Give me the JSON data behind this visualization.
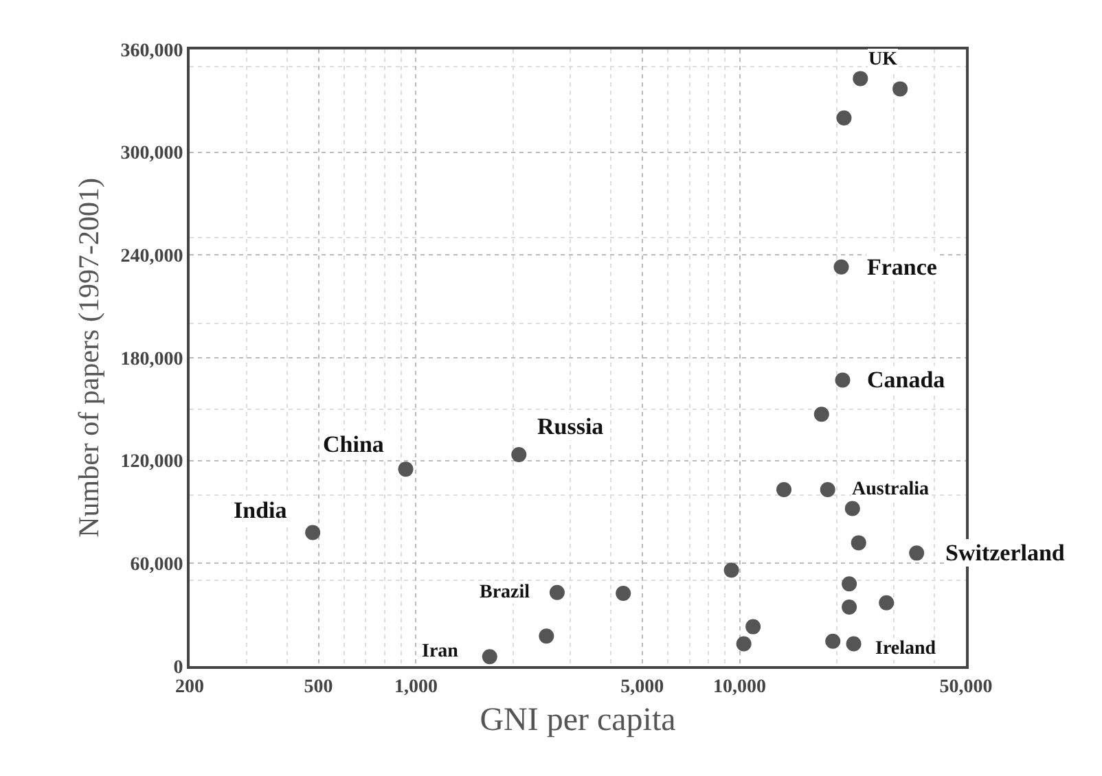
{
  "chart_data": {
    "type": "scatter",
    "xlabel": "GNI per capita",
    "ylabel": "Number of papers (1997-2001)",
    "log": "x",
    "grid": true,
    "marker": "circle",
    "xlim": [
      200,
      50000
    ],
    "xticks": [
      200,
      500,
      {
        "value": 1000,
        "label": "1,000"
      },
      {
        "value": 5000,
        "label": "5,000"
      },
      {
        "value": 10000,
        "label": "10,000"
      },
      {
        "value": 50000,
        "label": "50,000"
      }
    ],
    "ylim": [
      0,
      360000
    ],
    "yticks": [
      0,
      {
        "value": 60000,
        "label": "60,000"
      },
      {
        "value": 120000,
        "label": "120,000"
      },
      {
        "value": 180000,
        "label": "180,000"
      },
      {
        "value": 240000,
        "label": "240,000"
      },
      {
        "value": 300000,
        "label": "300,000"
      },
      {
        "value": 360000,
        "label": "360,000"
      }
    ],
    "series": [
      {
        "color": "#555555",
        "x": [
          480,
          930,
          2080,
          2730,
          4370,
          2530,
          1690,
          23600,
          31300,
          21000,
          20600,
          20800,
          17900,
          13700,
          18700,
          22300,
          23300,
          35200,
          9430,
          21800,
          21800,
          28400,
          11000,
          10300,
          19400,
          22500
        ],
        "values": [
          78000,
          115000,
          123500,
          43000,
          42500,
          17500,
          5500,
          343000,
          337000,
          320000,
          233000,
          167000,
          147000,
          103000,
          103000,
          92000,
          72000,
          66000,
          56000,
          48000,
          34500,
          37000,
          23000,
          13000,
          14500,
          13000
        ]
      }
    ],
    "annotations": [
      {
        "text": "India",
        "x": 480,
        "y": 78000
      },
      {
        "text": "China",
        "x": 930,
        "y": 115000
      },
      {
        "text": "Russia",
        "x": 2080,
        "y": 123500
      },
      {
        "text": "Brazil",
        "x": 2730,
        "y": 43000
      },
      {
        "text": "Iran",
        "x": 1690,
        "y": 5500
      },
      {
        "text": "UK",
        "x": 23600,
        "y": 343000
      },
      {
        "text": "France",
        "x": 20600,
        "y": 233000
      },
      {
        "text": "Canada",
        "x": 20800,
        "y": 167000
      },
      {
        "text": "Australia",
        "x": 18700,
        "y": 103000
      },
      {
        "text": "Switzerland",
        "x": 35200,
        "y": 66000
      },
      {
        "text": "Ireland",
        "x": 22500,
        "y": 13000
      }
    ]
  }
}
